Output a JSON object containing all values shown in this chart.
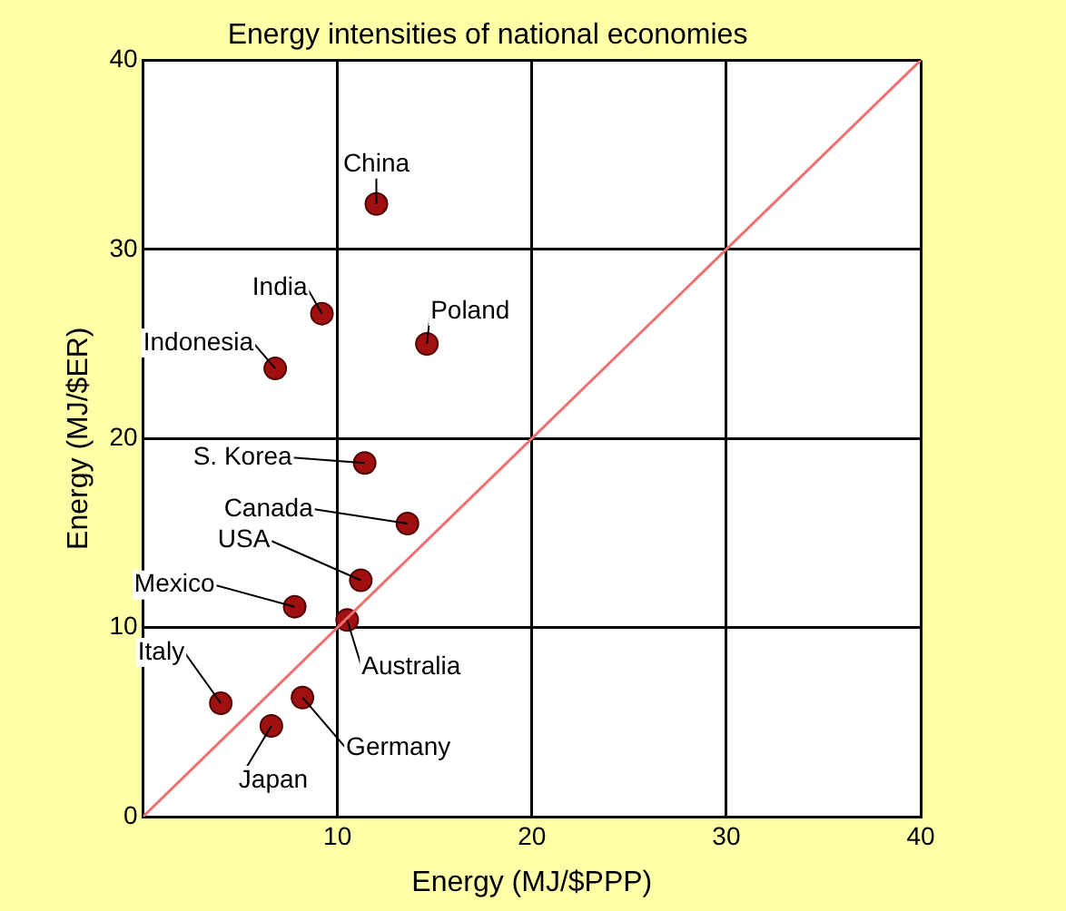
{
  "chart_data": {
    "type": "scatter",
    "title": "Energy intensities of national economies",
    "xlabel": "Energy (MJ/$PPP)",
    "ylabel": "Energy (MJ/$ER)",
    "xlim": [
      0,
      40
    ],
    "ylim": [
      0,
      40
    ],
    "xticks": [
      {
        "value": 0,
        "label": null
      },
      10,
      20,
      30,
      40
    ],
    "yticks": [
      0,
      10,
      20,
      30,
      40
    ],
    "grid": true,
    "legend": false,
    "marker": "circle",
    "series": [
      {
        "type": "line",
        "color": "#f07070",
        "x": [
          0,
          40
        ],
        "values": [
          0,
          40
        ],
        "marker": "none"
      },
      {
        "color": "#a01010",
        "x": [
          12.0,
          9.2,
          6.8,
          14.6,
          11.4,
          13.6,
          11.2,
          7.8,
          10.5,
          4.0,
          8.2,
          6.6
        ],
        "values": [
          32.4,
          26.6,
          23.7,
          25.0,
          18.7,
          15.5,
          12.5,
          11.1,
          10.4,
          6.0,
          6.3,
          4.8
        ]
      }
    ],
    "annotations": [
      {
        "text": "China",
        "x": 12.0,
        "y": 32.4
      },
      {
        "text": "India",
        "x": 9.2,
        "y": 26.6
      },
      {
        "text": "Indonesia",
        "x": 6.8,
        "y": 23.7
      },
      {
        "text": "Poland",
        "x": 14.6,
        "y": 25.0
      },
      {
        "text": "S. Korea",
        "x": 11.4,
        "y": 18.7
      },
      {
        "text": "Canada",
        "x": 13.6,
        "y": 15.5
      },
      {
        "text": "USA",
        "x": 11.2,
        "y": 12.5
      },
      {
        "text": "Mexico",
        "x": 7.8,
        "y": 11.1
      },
      {
        "text": "Australia",
        "x": 10.5,
        "y": 10.4
      },
      {
        "text": "Italy",
        "x": 4.0,
        "y": 6.0
      },
      {
        "text": "Germany",
        "x": 8.2,
        "y": 6.3
      },
      {
        "text": "Japan",
        "x": 6.6,
        "y": 4.8
      }
    ]
  }
}
